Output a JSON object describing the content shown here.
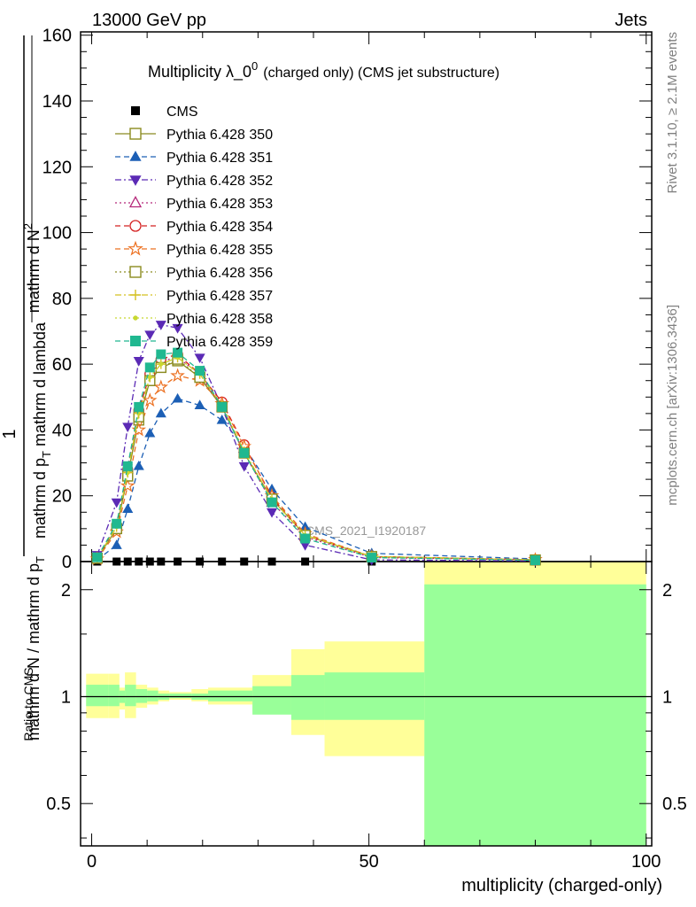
{
  "header": {
    "left": "13000 GeV pp",
    "right": "Jets"
  },
  "side_labels": {
    "rivet": "Rivet 3.1.10, ≥ 2.1M events",
    "mcplots": "mcplots.cern.ch [arXiv:1306.3436]"
  },
  "chart_data": [
    {
      "type": "line",
      "title": "Multiplicity λ_0",
      "title_superscript": "0",
      "title_suffix": "(charged only) (CMS jet substructure)",
      "ylabel_parts": [
        "1",
        "mathrm d N / mathrm d p",
        "T",
        "mathrm d N",
        "mathrm d p",
        "T",
        " mathrm d lambda",
        "mathrm d",
        "2"
      ],
      "xlabel": "",
      "watermark": "CMS_2021_I1920187",
      "xlim": [
        -2,
        101
      ],
      "ylim": [
        0,
        161
      ],
      "yticks": [
        0,
        20,
        40,
        60,
        80,
        100,
        120,
        140,
        160
      ],
      "x": [
        1,
        4.5,
        6.5,
        8.5,
        10.5,
        12.5,
        15.5,
        19.5,
        23.5,
        27.5,
        32.5,
        38.5,
        50.5,
        80
      ],
      "series": [
        {
          "name": "CMS",
          "color": "#000000",
          "marker": "square",
          "dash": "none",
          "values": [
            0,
            0,
            0,
            0,
            0,
            0,
            0,
            0,
            0,
            0,
            0,
            0,
            0,
            0
          ]
        },
        {
          "name": "Pythia 6.428 350",
          "color": "#8b8b20",
          "marker": "open-square",
          "dash": "solid",
          "values": [
            1.0,
            10,
            26,
            43,
            55,
            59,
            61,
            56,
            47,
            33,
            19,
            8,
            1.5,
            0.5
          ]
        },
        {
          "name": "Pythia 6.428 351",
          "color": "#1c5fb5",
          "marker": "triangle-up",
          "dash": "dashed",
          "values": [
            0.5,
            5,
            16,
            29,
            39,
            45,
            49.5,
            47.5,
            43,
            35,
            22,
            10.5,
            2.5,
            0.8
          ]
        },
        {
          "name": "Pythia 6.428 352",
          "color": "#5b2ab5",
          "marker": "triangle-down",
          "dash": "dashdot",
          "values": [
            2,
            18,
            41,
            61,
            69,
            72,
            71,
            62,
            47,
            29,
            15,
            5,
            0.5,
            0.2
          ]
        },
        {
          "name": "Pythia 6.428 353",
          "color": "#b5287a",
          "marker": "open-triangle",
          "dash": "dotted",
          "values": [
            1.2,
            11,
            28,
            46,
            57,
            61,
            62,
            57,
            47,
            33,
            18,
            7.5,
            1.2,
            0.5
          ]
        },
        {
          "name": "Pythia 6.428 354",
          "color": "#d42020",
          "marker": "open-circle",
          "dash": "dashed",
          "values": [
            1.2,
            11,
            28,
            46,
            57,
            61.5,
            63,
            57,
            48.5,
            35.5,
            19.5,
            8,
            1.5,
            0.5
          ]
        },
        {
          "name": "Pythia 6.428 355",
          "color": "#ec7020",
          "marker": "star",
          "dash": "dashed",
          "values": [
            0.8,
            9,
            23,
            40,
            49,
            53,
            56.5,
            55,
            48,
            35,
            20,
            8.5,
            1.5,
            0.6
          ]
        },
        {
          "name": "Pythia 6.428 356",
          "color": "#8b8b20",
          "marker": "open-square",
          "dash": "dotted",
          "values": [
            1.0,
            10,
            26,
            44,
            55,
            59,
            61.5,
            56,
            47,
            33,
            19,
            8,
            1.5,
            0.5
          ]
        },
        {
          "name": "Pythia 6.428 357",
          "color": "#d4c020",
          "marker": "tri",
          "dash": "dashdot",
          "values": [
            1.1,
            10.5,
            27,
            45,
            56,
            60,
            62,
            57,
            47.5,
            33.5,
            19,
            8,
            1.5,
            0.5
          ]
        },
        {
          "name": "Pythia 6.428 358",
          "color": "#c8d830",
          "marker": "dot",
          "dash": "dotted",
          "values": [
            1.1,
            10.5,
            27,
            45,
            56,
            60,
            62,
            57,
            47.5,
            33.5,
            19,
            8,
            1.5,
            0.5
          ]
        },
        {
          "name": "Pythia 6.428 359",
          "color": "#20b890",
          "marker": "filled-square",
          "dash": "dashed",
          "values": [
            1.3,
            11.5,
            29,
            47,
            59,
            63,
            63.5,
            58,
            47,
            33,
            18,
            7,
            1.2,
            0.4
          ]
        }
      ]
    },
    {
      "type": "area",
      "ylabel": "Ratio to CMS",
      "xlabel": "multiplicity (charged-only)",
      "scale": "log",
      "xlim": [
        -2,
        101
      ],
      "ylim": [
        0.38,
        2.4
      ],
      "yticks": [
        0.5,
        1,
        2
      ],
      "xticks": [
        0,
        50,
        100
      ],
      "reference": 1,
      "bands": [
        {
          "x": [
            -1,
            3,
            5,
            6,
            8,
            10,
            12,
            14,
            18,
            21,
            29,
            36,
            42,
            60,
            100
          ],
          "yellow_lo": [
            0.87,
            0.87,
            0.92,
            0.87,
            0.93,
            0.95,
            0.97,
            0.98,
            0.97,
            0.95,
            0.91,
            0.78,
            0.68,
            0.37,
            0.37
          ],
          "yellow_hi": [
            1.16,
            1.16,
            1.06,
            1.17,
            1.08,
            1.06,
            1.04,
            1.03,
            1.05,
            1.06,
            1.15,
            1.36,
            1.43,
            2.4,
            2.4
          ],
          "green_lo": [
            0.94,
            0.94,
            0.96,
            0.94,
            0.96,
            0.97,
            0.98,
            0.99,
            0.98,
            0.97,
            0.89,
            0.86,
            0.86,
            0.37,
            0.37
          ],
          "green_hi": [
            1.08,
            1.08,
            1.04,
            1.08,
            1.05,
            1.04,
            1.02,
            1.02,
            1.02,
            1.04,
            1.07,
            1.15,
            1.17,
            2.07,
            2.07
          ]
        }
      ]
    }
  ]
}
